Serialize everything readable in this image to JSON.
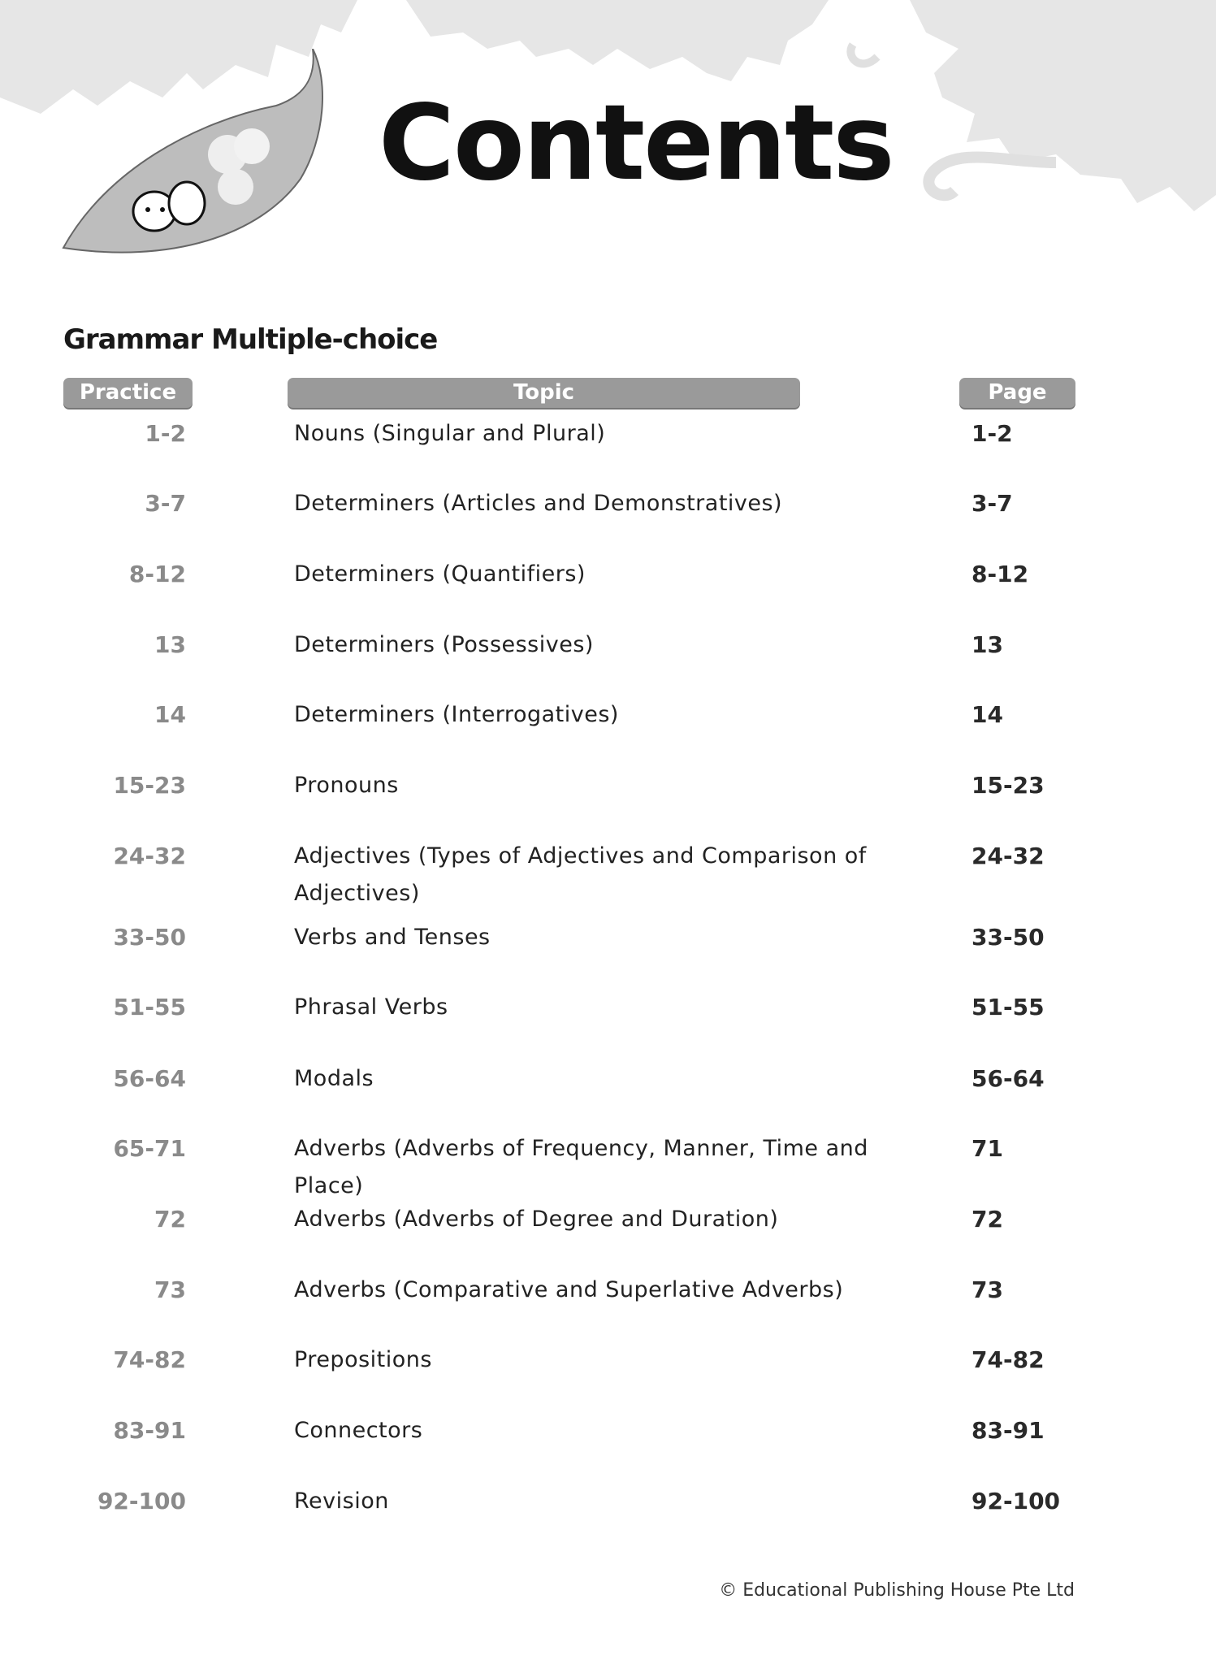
{
  "title": "Contents",
  "section": "Grammar Multiple-choice",
  "headers": {
    "practice": "Practice",
    "topic": "Topic",
    "page": "Page"
  },
  "rows": [
    {
      "practice": "1-2",
      "topic": "Nouns (Singular and Plural)",
      "page": "1-2"
    },
    {
      "practice": "3-7",
      "topic": "Determiners (Articles and Demonstratives)",
      "page": "3-7"
    },
    {
      "practice": "8-12",
      "topic": "Determiners (Quantifiers)",
      "page": "8-12"
    },
    {
      "practice": "13",
      "topic": "Determiners (Possessives)",
      "page": "13"
    },
    {
      "practice": "14",
      "topic": "Determiners (Interrogatives)",
      "page": "14"
    },
    {
      "practice": "15-23",
      "topic": "Pronouns",
      "page": "15-23"
    },
    {
      "practice": "24-32",
      "topic": "Adjectives (Types of Adjectives and Comparison of Adjectives)",
      "page": "24-32"
    },
    {
      "practice": "33-50",
      "topic": "Verbs and Tenses",
      "page": "33-50"
    },
    {
      "practice": "51-55",
      "topic": "Phrasal Verbs",
      "page": "51-55"
    },
    {
      "practice": "56-64",
      "topic": "Modals",
      "page": "56-64"
    },
    {
      "practice": "65-71",
      "topic": "Adverbs (Adverbs of Frequency, Manner, Time and Place)",
      "page": "71"
    },
    {
      "practice": "72",
      "topic": "Adverbs (Adverbs of Degree and Duration)",
      "page": "72"
    },
    {
      "practice": "73",
      "topic": "Adverbs (Comparative and Superlative Adverbs)",
      "page": "73"
    },
    {
      "practice": "74-82",
      "topic": "Prepositions",
      "page": "74-82"
    },
    {
      "practice": "83-91",
      "topic": "Connectors",
      "page": "83-91"
    },
    {
      "practice": "92-100",
      "topic": "Revision",
      "page": "92-100"
    }
  ],
  "copyright": "© Educational Publishing House Pte Ltd",
  "colors": {
    "header_pill": "#9a9a9a",
    "practice_text": "#8a8a8a",
    "foliage": "#e4e4e4"
  }
}
